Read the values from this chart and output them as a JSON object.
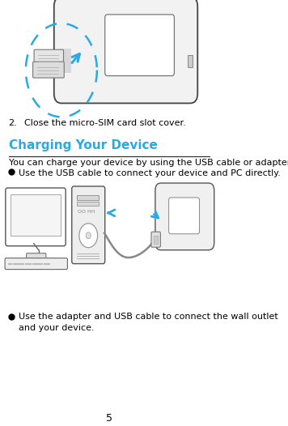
{
  "page_number": "5",
  "background_color": "#ffffff",
  "step2_label": "2.",
  "step2_text": "Close the micro-SIM card slot cover.",
  "section_title": "Charging Your Device",
  "section_title_color": "#29ABE2",
  "body_text1": "You can charge your device by using the USB cable or adapter.",
  "bullet1": "Use the USB cable to connect your device and PC directly.",
  "bullet2_line1": "Use the adapter and USB cable to connect the wall outlet",
  "bullet2_line2": "and your device.",
  "dashed_circle_color": "#29ABE2",
  "arrow_color": "#29ABE2",
  "line_separator_color": "#333333",
  "font_size_title": 11,
  "font_size_body": 8.0,
  "font_size_step": 8.0,
  "font_size_page": 9
}
